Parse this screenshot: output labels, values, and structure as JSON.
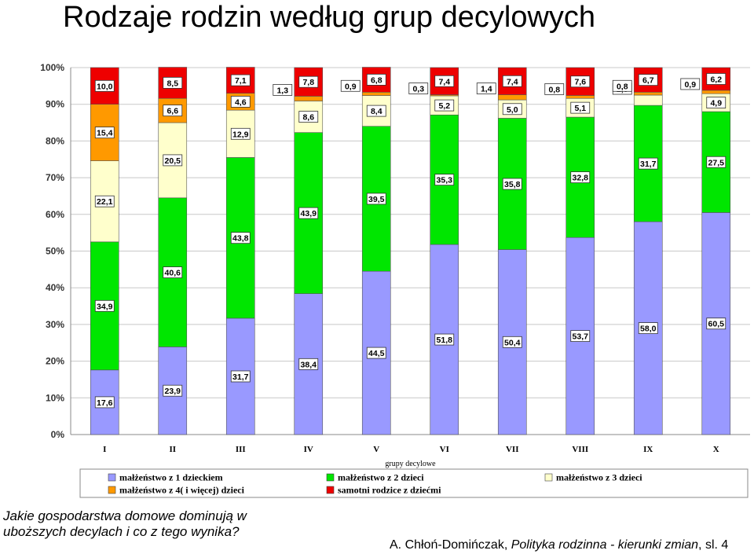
{
  "slide": {
    "title": "Rodzaje rodzin według grup decylowych",
    "question": "Jakie gospodarstwa domowe dominują w uboższych decylach i co z tego wynika?",
    "source_author": "A. Chłoń-Domińczak, ",
    "source_title": "Polityka rodzinna - kierunki zmian",
    "source_tail": ", sl. 4"
  },
  "chart_data": {
    "type": "bar",
    "stacked": true,
    "categories": [
      "I",
      "II",
      "III",
      "IV",
      "V",
      "VI",
      "VII",
      "VIII",
      "IX",
      "X"
    ],
    "xlabel": "grupy decylowe",
    "ylabel": "",
    "ylim": [
      0,
      100
    ],
    "yticks": [
      "0%",
      "10%",
      "20%",
      "30%",
      "40%",
      "50%",
      "60%",
      "70%",
      "80%",
      "90%",
      "100%"
    ],
    "grid": true,
    "legend_position": "bottom",
    "series": [
      {
        "name": "małżeństwo z 1 dzieckiem",
        "color": "#9999ff",
        "values": [
          17.6,
          23.9,
          31.7,
          38.4,
          44.5,
          51.8,
          50.4,
          53.7,
          58.0,
          60.5
        ],
        "labels": [
          "17,6",
          "23,9",
          "31,7",
          "38,4",
          "44,5",
          "51,8",
          "50,4",
          "53,7",
          "58,0",
          "60,5"
        ]
      },
      {
        "name": "małżeństwo z 2 dzieci",
        "color": "#00e600",
        "values": [
          34.9,
          40.6,
          43.8,
          43.9,
          39.5,
          35.3,
          35.8,
          32.8,
          31.7,
          27.5
        ],
        "labels": [
          "34,9",
          "40,6",
          "43,8",
          "43,9",
          "39,5",
          "35,3",
          "35,8",
          "32,8",
          "31,7",
          "27,5"
        ]
      },
      {
        "name": "małżeństwo z 3 dzieci",
        "color": "#ffffcc",
        "values": [
          22.1,
          20.5,
          12.9,
          8.6,
          8.4,
          5.2,
          5.0,
          5.1,
          2.8,
          4.9
        ],
        "labels": [
          "22,1",
          "20,5",
          "12,9",
          "8,6",
          "8,4",
          "5,2",
          "5,0",
          "5,1",
          "2,8",
          "4,9"
        ]
      },
      {
        "name": "małżeństwo z 4( i więcej) dzieci",
        "color": "#ff9900",
        "values": [
          15.4,
          6.6,
          4.6,
          1.3,
          0.9,
          0.3,
          1.4,
          0.8,
          0.8,
          0.9
        ],
        "labels": [
          "15,4",
          "6,6",
          "4,6",
          "1,3",
          "0,9",
          "0,3",
          "1,4",
          "0,8",
          "0,8",
          "0,9"
        ]
      },
      {
        "name": "samotni rodzice z dziećmi",
        "color": "#ee0000",
        "values": [
          10.0,
          8.5,
          7.1,
          7.8,
          6.8,
          7.4,
          7.4,
          7.6,
          6.7,
          6.2
        ],
        "labels": [
          "10,0",
          "8,5",
          "7,1",
          "7,8",
          "6,8",
          "7,4",
          "7,4",
          "7,6",
          "6,7",
          "6,2"
        ]
      }
    ]
  }
}
